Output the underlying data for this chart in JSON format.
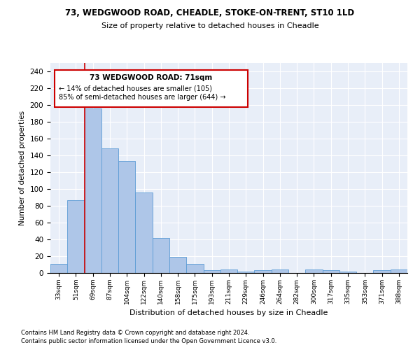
{
  "title1": "73, WEDGWOOD ROAD, CHEADLE, STOKE-ON-TRENT, ST10 1LD",
  "title2": "Size of property relative to detached houses in Cheadle",
  "xlabel": "Distribution of detached houses by size in Cheadle",
  "ylabel": "Number of detached properties",
  "footnote1": "Contains HM Land Registry data © Crown copyright and database right 2024.",
  "footnote2": "Contains public sector information licensed under the Open Government Licence v3.0.",
  "annotation_line1": "73 WEDGWOOD ROAD: 71sqm",
  "annotation_line2": "← 14% of detached houses are smaller (105)",
  "annotation_line3": "85% of semi-detached houses are larger (644) →",
  "bar_color": "#aec6e8",
  "bar_edge_color": "#5b9bd5",
  "vline_color": "#cc0000",
  "annotation_box_color": "#cc0000",
  "background_color": "#e8eef8",
  "categories": [
    "33sqm",
    "51sqm",
    "69sqm",
    "87sqm",
    "104sqm",
    "122sqm",
    "140sqm",
    "158sqm",
    "175sqm",
    "193sqm",
    "211sqm",
    "229sqm",
    "246sqm",
    "264sqm",
    "282sqm",
    "300sqm",
    "317sqm",
    "335sqm",
    "353sqm",
    "371sqm",
    "388sqm"
  ],
  "values": [
    11,
    87,
    196,
    148,
    133,
    96,
    42,
    19,
    11,
    3,
    4,
    2,
    3,
    4,
    0,
    4,
    3,
    2,
    0,
    3,
    4
  ],
  "vline_x": 1.5,
  "ylim": [
    0,
    250
  ],
  "yticks": [
    0,
    20,
    40,
    60,
    80,
    100,
    120,
    140,
    160,
    180,
    200,
    220,
    240
  ]
}
